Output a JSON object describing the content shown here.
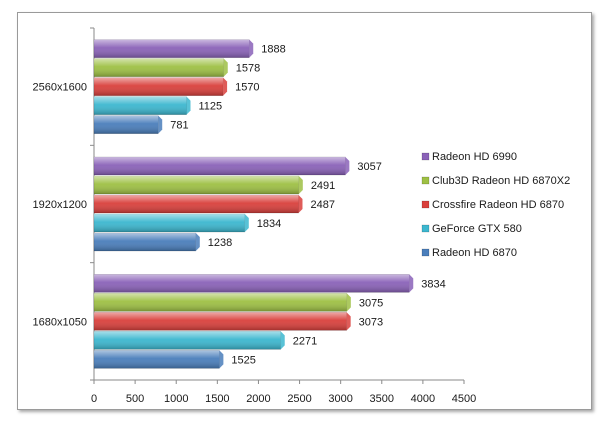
{
  "chart_data": {
    "type": "bar",
    "orientation": "horizontal",
    "categories": [
      "1680x1050",
      "1920x1200",
      "2560x1600"
    ],
    "series": [
      {
        "name": "Radeon HD 6870",
        "color": "#4a7ebb",
        "values": [
          1525,
          1238,
          781
        ]
      },
      {
        "name": "GeForce GTX 580",
        "color": "#3cb7cf",
        "values": [
          2271,
          1834,
          1125
        ]
      },
      {
        "name": "Crossfire Radeon HD 6870",
        "color": "#d9403c",
        "values": [
          3073,
          2487,
          1570
        ]
      },
      {
        "name": "Club3D Radeon HD 6870X2",
        "color": "#9ec044",
        "values": [
          3075,
          2491,
          1578
        ]
      },
      {
        "name": "Radeon HD 6990",
        "color": "#8a62b8",
        "values": [
          3834,
          3057,
          1888
        ]
      }
    ],
    "xlim": [
      0,
      4500
    ],
    "xticks": [
      "0",
      "500",
      "1000",
      "1500",
      "2000",
      "2500",
      "3000",
      "3500",
      "4000",
      "4500"
    ],
    "legend_position": "right",
    "grid": false
  }
}
